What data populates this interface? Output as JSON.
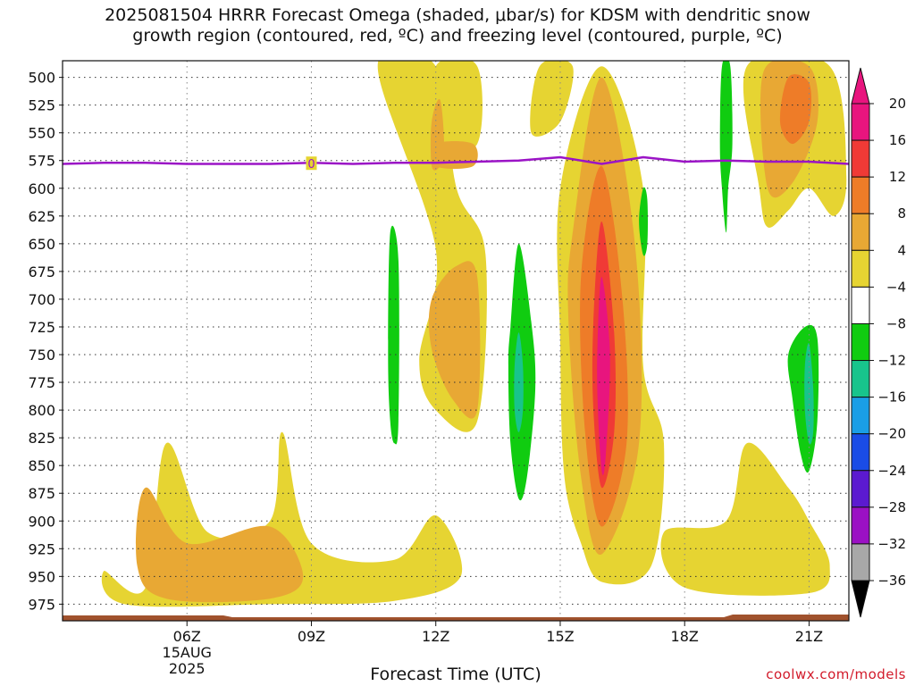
{
  "title": "2025081504 HRRR Forecast Omega (shaded, μbar/s) for KDSM with dendritic snow\ngrowth region (contoured, red, ºC) and freezing level (contoured, purple, ºC)",
  "credit": "coolwx.com/models",
  "chart_data": {
    "type": "heatmap",
    "title": "2025081504 HRRR Forecast Omega (shaded, μbar/s) for KDSM with dendritic snow growth region (contoured, red, ºC) and freezing level (contoured, purple, ºC)",
    "xlabel": "Forecast Time (UTC)",
    "ylabel": "",
    "x_ticks": [
      {
        "label": "06Z",
        "hour": 6
      },
      {
        "label": "09Z",
        "hour": 9
      },
      {
        "label": "12Z",
        "hour": 12
      },
      {
        "label": "15Z",
        "hour": 15
      },
      {
        "label": "18Z",
        "hour": 18
      },
      {
        "label": "21Z",
        "hour": 21
      }
    ],
    "date_label": [
      "15AUG",
      "2025"
    ],
    "xlim": [
      3,
      21.96
    ],
    "y_ticks": [
      500,
      525,
      550,
      575,
      600,
      625,
      650,
      675,
      700,
      725,
      750,
      775,
      800,
      825,
      850,
      875,
      900,
      925,
      950,
      975
    ],
    "ylim": [
      485,
      990
    ],
    "grid": true,
    "colorbar": {
      "levels": [
        20,
        16,
        12,
        8,
        4,
        -4,
        -8,
        -12,
        -16,
        -20,
        -24,
        -28,
        -32,
        -36
      ],
      "colors": [
        "#e8157e",
        "#f03a36",
        "#ee7c28",
        "#e8a834",
        "#e6d432",
        "#ffffff",
        "#10cc10",
        "#18c48c",
        "#1a9ee6",
        "#1a4ce6",
        "#5b1ad0",
        "#9b10c4",
        "#a8a8a8"
      ]
    },
    "freezing_level": {
      "hours": [
        3,
        4,
        5,
        6,
        7,
        8,
        9,
        10,
        11,
        12,
        13,
        14,
        15,
        16,
        17,
        18,
        19,
        20,
        21,
        21.96
      ],
      "pressure": [
        578,
        577,
        577,
        578,
        578,
        578,
        577,
        578,
        577,
        577,
        576,
        575,
        572,
        578,
        572,
        576,
        575,
        576,
        576,
        578
      ],
      "label": "0"
    },
    "shaded_regions": [
      {
        "level": 4,
        "t": [
          [
            5.0,
            960
          ],
          [
            5.5,
            830
          ],
          [
            6.5,
            910
          ],
          [
            8.0,
            900
          ],
          [
            8.3,
            820
          ],
          [
            9.0,
            920
          ],
          [
            11.0,
            935
          ],
          [
            12.0,
            895
          ],
          [
            12.6,
            950
          ],
          [
            11.0,
            972
          ],
          [
            8.0,
            975
          ],
          [
            4.5,
            975
          ],
          [
            4.0,
            945
          ]
        ]
      },
      {
        "level": 8,
        "t": [
          [
            4.8,
            940
          ],
          [
            5.0,
            870
          ],
          [
            6.0,
            920
          ],
          [
            8.0,
            905
          ],
          [
            8.8,
            950
          ],
          [
            8.0,
            970
          ],
          [
            5.5,
            970
          ]
        ]
      },
      {
        "level": 4,
        "t": [
          [
            10.6,
            490
          ],
          [
            12.0,
            490
          ],
          [
            12.5,
            600
          ],
          [
            13.2,
            660
          ],
          [
            13.0,
            810
          ],
          [
            12.0,
            800
          ],
          [
            11.6,
            755
          ],
          [
            12.0,
            655
          ]
        ]
      },
      {
        "level": 8,
        "t": [
          [
            11.9,
            700
          ],
          [
            12.5,
            670
          ],
          [
            13.0,
            680
          ],
          [
            13.0,
            800
          ],
          [
            12.4,
            790
          ],
          [
            11.9,
            745
          ]
        ]
      },
      {
        "level": 4,
        "t": [
          [
            12.0,
            490
          ],
          [
            13.0,
            490
          ],
          [
            13.0,
            560
          ],
          [
            12.0,
            560
          ]
        ]
      },
      {
        "level": 8,
        "t": [
          [
            12.0,
            560
          ],
          [
            12.9,
            560
          ],
          [
            12.9,
            580
          ],
          [
            12.0,
            580
          ]
        ]
      },
      {
        "level": 8,
        "t": [
          [
            11.9,
            540
          ],
          [
            12.1,
            520
          ],
          [
            12.2,
            560
          ],
          [
            12.1,
            580
          ],
          [
            11.9,
            580
          ]
        ]
      },
      {
        "level": 4,
        "t": [
          [
            14.5,
            490
          ],
          [
            15.3,
            490
          ],
          [
            15.0,
            540
          ],
          [
            14.3,
            550
          ]
        ]
      },
      {
        "level": 4,
        "t": [
          [
            15.0,
            600
          ],
          [
            16.0,
            490
          ],
          [
            17.0,
            600
          ],
          [
            17.0,
            760
          ],
          [
            17.5,
            830
          ],
          [
            17.2,
            940
          ],
          [
            16.0,
            955
          ],
          [
            15.5,
            920
          ],
          [
            15.1,
            860
          ],
          [
            15.0,
            740
          ]
        ]
      },
      {
        "level": 8,
        "t": [
          [
            15.3,
            640
          ],
          [
            16.0,
            500
          ],
          [
            16.8,
            650
          ],
          [
            16.9,
            830
          ],
          [
            16.0,
            930
          ],
          [
            15.5,
            860
          ],
          [
            15.2,
            720
          ]
        ]
      },
      {
        "level": 12,
        "t": [
          [
            15.5,
            680
          ],
          [
            16.0,
            580
          ],
          [
            16.5,
            700
          ],
          [
            16.6,
            830
          ],
          [
            16.0,
            905
          ],
          [
            15.6,
            820
          ]
        ]
      },
      {
        "level": 16,
        "t": [
          [
            15.8,
            720
          ],
          [
            16.0,
            630
          ],
          [
            16.3,
            730
          ],
          [
            16.3,
            820
          ],
          [
            16.0,
            870
          ],
          [
            15.8,
            800
          ]
        ]
      },
      {
        "level": 20,
        "t": [
          [
            15.9,
            740
          ],
          [
            16.0,
            680
          ],
          [
            16.2,
            750
          ],
          [
            16.1,
            840
          ],
          [
            16.0,
            855
          ],
          [
            15.9,
            790
          ]
        ]
      },
      {
        "level": 4,
        "t": [
          [
            17.5,
            910
          ],
          [
            19.0,
            900
          ],
          [
            19.5,
            830
          ],
          [
            20.5,
            870
          ],
          [
            21.0,
            900
          ],
          [
            21.5,
            940
          ],
          [
            21.0,
            965
          ],
          [
            18.0,
            960
          ]
        ]
      },
      {
        "level": 4,
        "t": [
          [
            19.5,
            490
          ],
          [
            21.5,
            490
          ],
          [
            21.9,
            590
          ],
          [
            21.6,
            625
          ],
          [
            21.0,
            600
          ],
          [
            20.5,
            620
          ],
          [
            20.0,
            635
          ],
          [
            19.8,
            600
          ]
        ]
      },
      {
        "level": 8,
        "t": [
          [
            19.9,
            495
          ],
          [
            21.0,
            490
          ],
          [
            21.2,
            540
          ],
          [
            20.6,
            595
          ],
          [
            20.0,
            600
          ]
        ]
      },
      {
        "level": 12,
        "t": [
          [
            20.5,
            500
          ],
          [
            21.0,
            505
          ],
          [
            21.0,
            540
          ],
          [
            20.6,
            560
          ],
          [
            20.3,
            540
          ]
        ]
      },
      {
        "level": -8,
        "t": [
          [
            10.9,
            640
          ],
          [
            11.1,
            665
          ],
          [
            11.1,
            810
          ],
          [
            11.0,
            830
          ],
          [
            10.9,
            810
          ],
          [
            10.85,
            750
          ]
        ]
      },
      {
        "level": -8,
        "t": [
          [
            13.8,
            725
          ],
          [
            14.0,
            650
          ],
          [
            14.3,
            720
          ],
          [
            14.4,
            780
          ],
          [
            14.2,
            860
          ],
          [
            14.0,
            880
          ],
          [
            13.8,
            830
          ],
          [
            13.75,
            760
          ]
        ]
      },
      {
        "level": -12,
        "t": [
          [
            13.9,
            760
          ],
          [
            14.0,
            730
          ],
          [
            14.1,
            760
          ],
          [
            14.1,
            800
          ],
          [
            14.0,
            820
          ],
          [
            13.9,
            800
          ]
        ]
      },
      {
        "level": -8,
        "t": [
          [
            17.0,
            600
          ],
          [
            17.1,
            610
          ],
          [
            17.1,
            650
          ],
          [
            17.0,
            660
          ],
          [
            16.9,
            630
          ]
        ]
      },
      {
        "level": -8,
        "t": [
          [
            18.9,
            490
          ],
          [
            19.1,
            490
          ],
          [
            19.15,
            560
          ],
          [
            19.05,
            600
          ],
          [
            19.0,
            640
          ],
          [
            18.9,
            600
          ],
          [
            18.85,
            560
          ]
        ]
      },
      {
        "level": -8,
        "t": [
          [
            20.5,
            750
          ],
          [
            20.9,
            725
          ],
          [
            21.2,
            735
          ],
          [
            21.2,
            810
          ],
          [
            21.0,
            855
          ],
          [
            20.8,
            840
          ],
          [
            20.6,
            790
          ]
        ]
      },
      {
        "level": -12,
        "t": [
          [
            20.9,
            760
          ],
          [
            21.0,
            740
          ],
          [
            21.1,
            780
          ],
          [
            21.1,
            820
          ],
          [
            21.0,
            830
          ],
          [
            20.9,
            800
          ]
        ]
      }
    ]
  }
}
